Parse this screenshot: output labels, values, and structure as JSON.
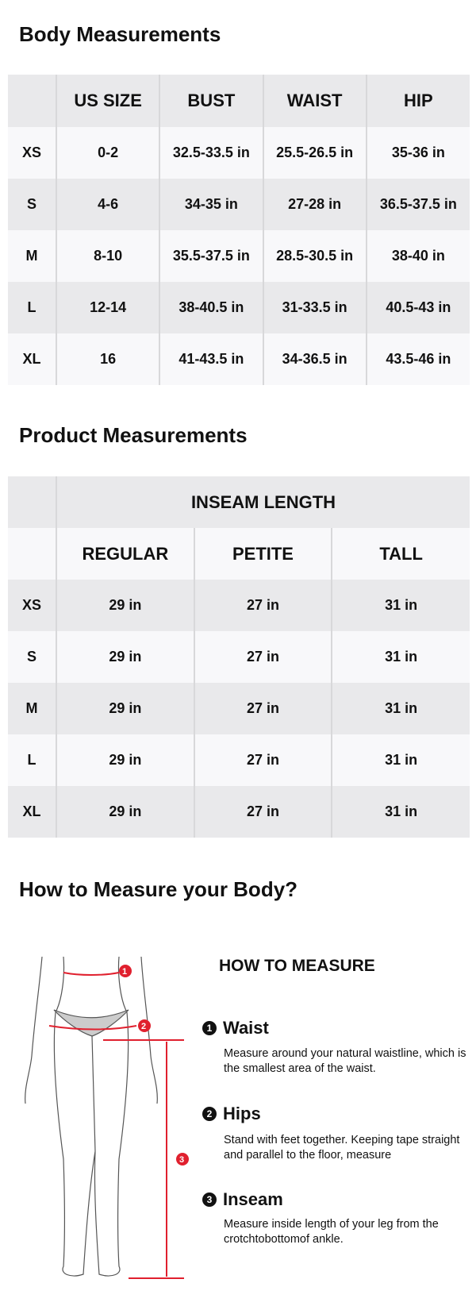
{
  "body": {
    "title": "Body Measurements",
    "headers": [
      "",
      "US SIZE",
      "BUST",
      "WAIST",
      "HIP"
    ],
    "rows": [
      [
        "XS",
        "0-2",
        "32.5-33.5 in",
        "25.5-26.5 in",
        "35-36 in"
      ],
      [
        "S",
        "4-6",
        "34-35 in",
        "27-28 in",
        "36.5-37.5 in"
      ],
      [
        "M",
        "8-10",
        "35.5-37.5 in",
        "28.5-30.5 in",
        "38-40 in"
      ],
      [
        "L",
        "12-14",
        "38-40.5 in",
        "31-33.5 in",
        "40.5-43 in"
      ],
      [
        "XL",
        "16",
        "41-43.5 in",
        "34-36.5 in",
        "43.5-46 in"
      ]
    ]
  },
  "product": {
    "title": "Product Measurements",
    "group_header": "INSEAM LENGTH",
    "headers": [
      "",
      "REGULAR",
      "PETITE",
      "TALL"
    ],
    "rows": [
      [
        "XS",
        "29 in",
        "27 in",
        "31 in"
      ],
      [
        "S",
        "29 in",
        "27 in",
        "31 in"
      ],
      [
        "M",
        "29 in",
        "27 in",
        "31 in"
      ],
      [
        "L",
        "29 in",
        "27 in",
        "31 in"
      ],
      [
        "XL",
        "29 in",
        "27 in",
        "31 in"
      ]
    ]
  },
  "how": {
    "title": "How to Measure your Body?",
    "subtitle": "HOW TO MEASURE",
    "accent": "#e0202e",
    "steps": [
      {
        "num": "1",
        "label": "Waist",
        "desc": "Measure around your natural waistline, which is the smallest area of the waist."
      },
      {
        "num": "2",
        "label": "Hips",
        "desc": "Stand with feet together. Keeping tape straight and parallel to the floor, measure"
      },
      {
        "num": "3",
        "label": "Inseam",
        "desc": "Measure inside length of your leg from the crotchtobottomof ankle."
      }
    ]
  }
}
